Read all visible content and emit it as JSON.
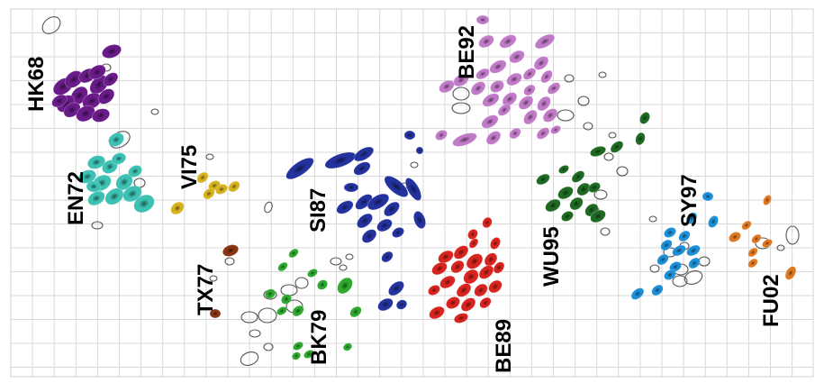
{
  "clusters": [
    {
      "id": "HK68",
      "label": "HK68",
      "color": "#6a1b8a"
    },
    {
      "id": "EN72",
      "label": "EN72",
      "color": "#3cc1b2"
    },
    {
      "id": "VI75",
      "label": "VI75",
      "color": "#d6b21e"
    },
    {
      "id": "TX77",
      "label": "TX77",
      "color": "#8a3512"
    },
    {
      "id": "BK79",
      "label": "BK79",
      "color": "#2ea82e"
    },
    {
      "id": "SI87",
      "label": "SI87",
      "color": "#24329e"
    },
    {
      "id": "BE89",
      "label": "BE89",
      "color": "#d8241f"
    },
    {
      "id": "BE92",
      "label": "BE92",
      "color": "#c17ac8"
    },
    {
      "id": "WU95",
      "label": "WU95",
      "color": "#1f6a23"
    },
    {
      "id": "SY97",
      "label": "SY97",
      "color": "#1d8fd6"
    },
    {
      "id": "FU02",
      "label": "FU02",
      "color": "#e07a22"
    }
  ],
  "grid_color": "#d8d8d8",
  "outline_color": "#555555"
}
